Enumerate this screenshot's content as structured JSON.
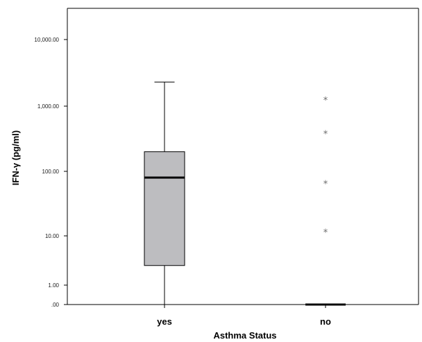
{
  "chart_data": {
    "type": "boxplot",
    "xlabel": "Asthma Status",
    "ylabel": "IFN-γ (pg/ml)",
    "y_scale": "log",
    "categories": [
      "yes",
      "no"
    ],
    "y_ticks": [
      {
        "value": 0,
        "label": ".00"
      },
      {
        "value": 1,
        "label": "1.00"
      },
      {
        "value": 10,
        "label": "10.00"
      },
      {
        "value": 100,
        "label": "100.00"
      },
      {
        "value": 1000,
        "label": "1,000.00"
      },
      {
        "value": 10000,
        "label": "10,000.00"
      }
    ],
    "boxes": [
      {
        "category": "yes",
        "whisker_low": 0,
        "q1": 2.5,
        "median": 80,
        "q3": 200,
        "whisker_high": 2300,
        "outliers": []
      },
      {
        "category": "no",
        "whisker_low": 0,
        "q1": 0,
        "median": 0,
        "q3": 0,
        "whisker_high": 0,
        "outliers": [
          12,
          68,
          400,
          1300
        ]
      }
    ],
    "box_color": "#bdbdc0",
    "outlier_symbol": "*",
    "grid": false
  }
}
